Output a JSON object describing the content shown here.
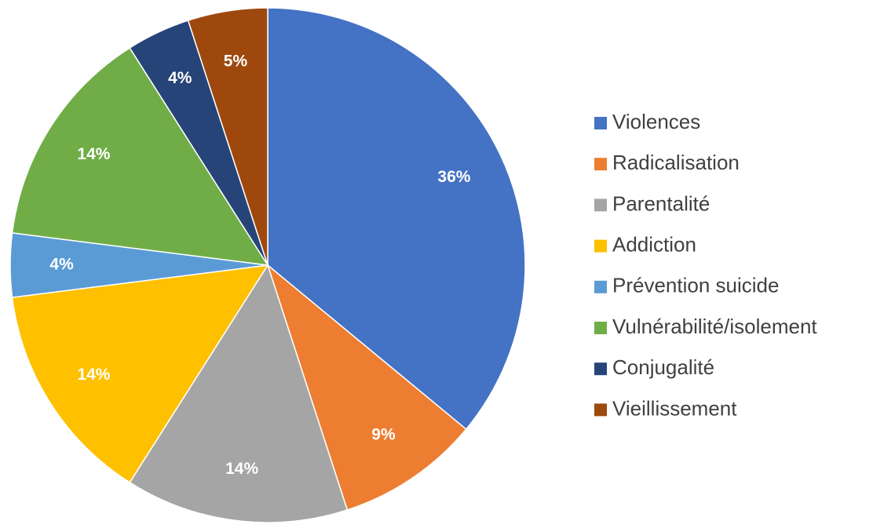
{
  "chart_data": {
    "type": "pie",
    "categories": [
      "Violences",
      "Radicalisation",
      "Parentalité",
      "Addiction",
      "Prévention suicide",
      "Vulnérabilité/isolement",
      "Conjugalité",
      "Vieillissement"
    ],
    "values": [
      36,
      9,
      14,
      14,
      4,
      14,
      4,
      5
    ],
    "value_labels": [
      "36%",
      "9%",
      "14%",
      "14%",
      "4%",
      "14%",
      "4%",
      "5%"
    ],
    "colors": [
      "#4472c4",
      "#ed7d31",
      "#a5a5a5",
      "#ffc000",
      "#5b9bd5",
      "#70ad47",
      "#264478",
      "#9e480e"
    ],
    "legend": "right"
  }
}
